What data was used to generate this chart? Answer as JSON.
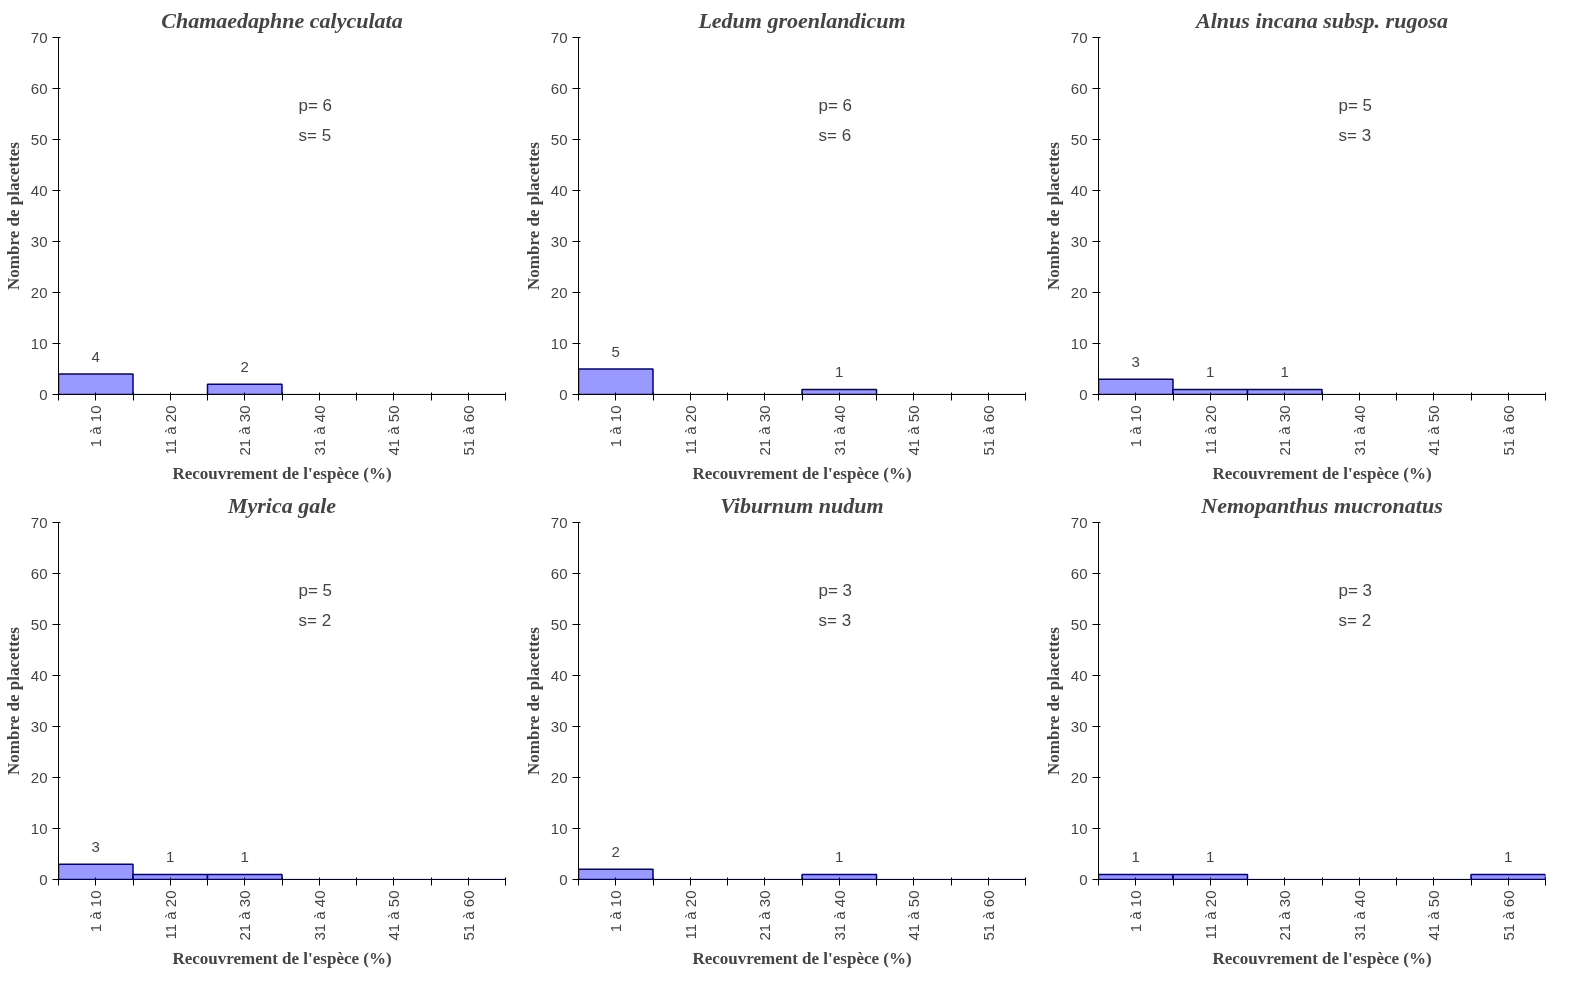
{
  "chart_data": [
    {
      "type": "bar",
      "title": "Chamaedaphne calyculata",
      "xlabel": "Recouvrement de l'espèce (%)",
      "ylabel": "Nombre de placettes",
      "categories": [
        "1 à 10",
        "11 à 20",
        "21 à 30",
        "31 à 40",
        "41 à 50",
        "51 à 60"
      ],
      "values": [
        4,
        0,
        2,
        0,
        0,
        0
      ],
      "value_labels": [
        "4",
        null,
        "2",
        null,
        null,
        null
      ],
      "color": "#9999ff",
      "ylim": [
        0,
        70
      ],
      "yticks": [
        0,
        10,
        20,
        30,
        40,
        50,
        60,
        70
      ],
      "grid": false,
      "annotations": [
        "p= 6",
        "s= 5"
      ]
    },
    {
      "type": "bar",
      "title": "Ledum groenlandicum",
      "xlabel": "Recouvrement de l'espèce (%)",
      "ylabel": "Nombre de placettes",
      "categories": [
        "1 à 10",
        "11 à 20",
        "21 à 30",
        "31 à 40",
        "41 à 50",
        "51 à 60"
      ],
      "values": [
        5,
        0,
        0,
        1,
        0,
        0
      ],
      "value_labels": [
        "5",
        null,
        null,
        "1",
        null,
        null
      ],
      "color": "#9999ff",
      "ylim": [
        0,
        70
      ],
      "yticks": [
        0,
        10,
        20,
        30,
        40,
        50,
        60,
        70
      ],
      "grid": false,
      "annotations": [
        "p= 6",
        "s= 6"
      ]
    },
    {
      "type": "bar",
      "title": "Alnus incana subsp. rugosa",
      "xlabel": "Recouvrement de l'espèce (%)",
      "ylabel": "Nombre de placettes",
      "categories": [
        "1 à 10",
        "11 à 20",
        "21 à 30",
        "31 à 40",
        "41 à 50",
        "51 à 60"
      ],
      "values": [
        3,
        1,
        1,
        0,
        0,
        0
      ],
      "value_labels": [
        "3",
        "1",
        "1",
        null,
        null,
        null
      ],
      "color": "#9999ff",
      "ylim": [
        0,
        70
      ],
      "yticks": [
        0,
        10,
        20,
        30,
        40,
        50,
        60,
        70
      ],
      "grid": false,
      "annotations": [
        "p= 5",
        "s= 3"
      ]
    },
    {
      "type": "bar",
      "title": "Myrica gale",
      "xlabel": "Recouvrement de l'espèce (%)",
      "ylabel": "Nombre de placettes",
      "categories": [
        "1 à 10",
        "11 à 20",
        "21 à 30",
        "31 à 40",
        "41 à 50",
        "51 à 60"
      ],
      "values": [
        3,
        1,
        1,
        0,
        0,
        0
      ],
      "value_labels": [
        "3",
        "1",
        "1",
        null,
        null,
        null
      ],
      "color": "#9999ff",
      "ylim": [
        0,
        70
      ],
      "yticks": [
        0,
        10,
        20,
        30,
        40,
        50,
        60,
        70
      ],
      "grid": false,
      "annotations": [
        "p= 5",
        "s= 2"
      ]
    },
    {
      "type": "bar",
      "title": "Viburnum nudum",
      "xlabel": "Recouvrement de l'espèce (%)",
      "ylabel": "Nombre de placettes",
      "categories": [
        "1 à 10",
        "11 à 20",
        "21 à 30",
        "31 à 40",
        "41 à 50",
        "51 à 60"
      ],
      "values": [
        2,
        0,
        0,
        1,
        0,
        0
      ],
      "value_labels": [
        "2",
        null,
        null,
        "1",
        null,
        null
      ],
      "color": "#9999ff",
      "ylim": [
        0,
        70
      ],
      "yticks": [
        0,
        10,
        20,
        30,
        40,
        50,
        60,
        70
      ],
      "grid": false,
      "annotations": [
        "p= 3",
        "s= 3"
      ]
    },
    {
      "type": "bar",
      "title": "Nemopanthus mucronatus",
      "xlabel": "Recouvrement de l'espèce (%)",
      "ylabel": "Nombre de placettes",
      "categories": [
        "1 à 10",
        "11 à 20",
        "21 à 30",
        "31 à 40",
        "41 à 50",
        "51 à 60"
      ],
      "values": [
        1,
        1,
        0,
        0,
        0,
        1
      ],
      "value_labels": [
        "1",
        "1",
        null,
        null,
        null,
        "1"
      ],
      "color": "#9999ff",
      "ylim": [
        0,
        70
      ],
      "yticks": [
        0,
        10,
        20,
        30,
        40,
        50,
        60,
        70
      ],
      "grid": false,
      "annotations": [
        "p= 3",
        "s= 2"
      ]
    }
  ]
}
